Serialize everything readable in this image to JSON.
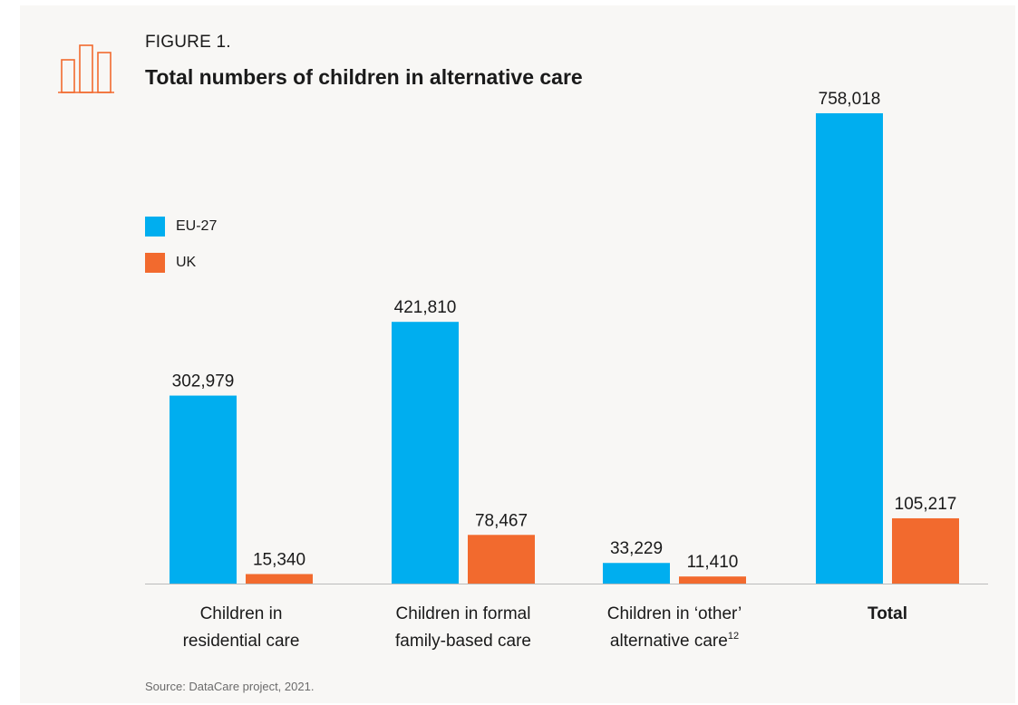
{
  "header": {
    "figure_label": "FIGURE 1.",
    "title": "Total numbers of children in alternative care"
  },
  "footer": {
    "source": "Source: DataCare project, 2021."
  },
  "icons": {
    "figure_icon": "bar-chart-icon"
  },
  "colors": {
    "background": "#f8f7f5",
    "eu27": "#00aeef",
    "uk": "#f26a2e",
    "axis": "#bbbbbb",
    "icon": "#f26a2e"
  },
  "chart_data": {
    "type": "bar",
    "title": "Total numbers of children in alternative care",
    "xlabel": "",
    "ylabel": "",
    "ylim": [
      0,
      758018
    ],
    "grid": false,
    "legend_position": "left",
    "categories": [
      {
        "lines": [
          "Children in",
          "residential care"
        ],
        "sup": "",
        "bold": false
      },
      {
        "lines": [
          "Children in formal",
          "family-based care"
        ],
        "sup": "",
        "bold": false
      },
      {
        "lines": [
          "Children in ‘other’",
          "alternative care"
        ],
        "sup": "12",
        "bold": false
      },
      {
        "lines": [
          "Total"
        ],
        "sup": "",
        "bold": true
      }
    ],
    "series": [
      {
        "name": "EU-27",
        "color": "#00aeef",
        "values": [
          302979,
          421810,
          33229,
          758018
        ],
        "labels": [
          "302,979",
          "421,810",
          "33,229",
          "758,018"
        ]
      },
      {
        "name": "UK",
        "color": "#f26a2e",
        "values": [
          15340,
          78467,
          11410,
          105217
        ],
        "labels": [
          "15,340",
          "78,467",
          "11,410",
          "105,217"
        ]
      }
    ]
  }
}
